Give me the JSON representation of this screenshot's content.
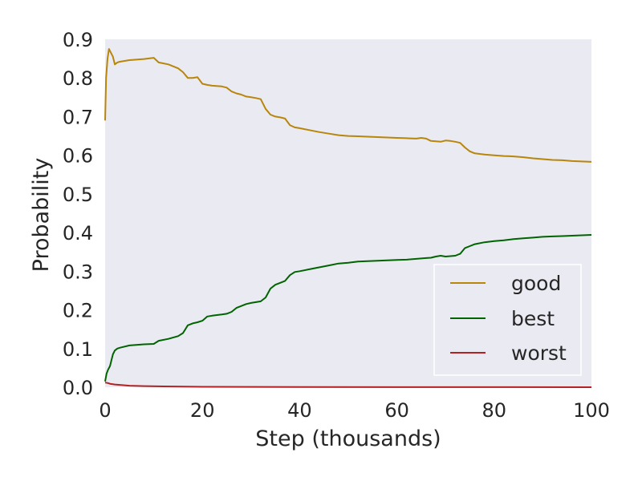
{
  "chart_data": {
    "type": "line",
    "title": "",
    "xlabel": "Step (thousands)",
    "ylabel": "Probability",
    "xlim": [
      0,
      100
    ],
    "ylim": [
      0,
      0.9
    ],
    "xticks": [
      0,
      20,
      40,
      60,
      80,
      100
    ],
    "yticks": [
      0.0,
      0.1,
      0.2,
      0.3,
      0.4,
      0.5,
      0.6,
      0.7,
      0.8,
      0.9
    ],
    "xtick_labels": [
      "0",
      "20",
      "40",
      "60",
      "80",
      "100"
    ],
    "ytick_labels": [
      "0.0",
      "0.1",
      "0.2",
      "0.3",
      "0.4",
      "0.5",
      "0.6",
      "0.7",
      "0.8",
      "0.9"
    ],
    "grid": false,
    "background_color": "#eaeaf2",
    "legend_position": "lower-right",
    "series": [
      {
        "name": "good",
        "color": "#b8860b",
        "x": [
          0,
          0.2,
          0.5,
          0.8,
          1.2,
          1.6,
          2.0,
          2.5,
          3,
          5,
          8,
          10,
          11,
          13,
          15,
          16,
          17,
          18,
          19,
          20,
          21,
          22,
          24,
          25,
          26,
          27,
          28,
          29,
          30,
          31,
          32,
          33,
          34,
          35,
          36,
          37,
          38,
          39,
          40,
          42,
          44,
          46,
          48,
          50,
          52,
          54,
          56,
          58,
          60,
          62,
          64,
          65,
          66,
          67,
          68,
          69,
          70,
          71,
          72,
          73,
          74,
          75,
          76,
          78,
          80,
          82,
          84,
          86,
          88,
          90,
          92,
          94,
          96,
          98,
          100
        ],
        "y": [
          0.69,
          0.8,
          0.85,
          0.875,
          0.865,
          0.855,
          0.835,
          0.84,
          0.842,
          0.846,
          0.849,
          0.852,
          0.84,
          0.835,
          0.825,
          0.815,
          0.8,
          0.8,
          0.802,
          0.785,
          0.782,
          0.78,
          0.778,
          0.775,
          0.765,
          0.76,
          0.757,
          0.752,
          0.75,
          0.748,
          0.745,
          0.72,
          0.705,
          0.7,
          0.698,
          0.695,
          0.678,
          0.672,
          0.67,
          0.665,
          0.66,
          0.656,
          0.652,
          0.65,
          0.649,
          0.648,
          0.647,
          0.646,
          0.645,
          0.644,
          0.643,
          0.645,
          0.643,
          0.637,
          0.636,
          0.635,
          0.638,
          0.637,
          0.635,
          0.632,
          0.62,
          0.61,
          0.605,
          0.602,
          0.6,
          0.598,
          0.597,
          0.595,
          0.592,
          0.59,
          0.588,
          0.587,
          0.585,
          0.584,
          0.583
        ]
      },
      {
        "name": "best",
        "color": "#006400",
        "x": [
          0,
          0.3,
          0.6,
          1.0,
          1.3,
          1.6,
          2.0,
          2.5,
          3,
          5,
          8,
          10,
          11,
          13,
          15,
          16,
          17,
          18,
          19,
          20,
          21,
          22,
          24,
          25,
          26,
          27,
          28,
          29,
          30,
          31,
          32,
          33,
          34,
          35,
          36,
          37,
          38,
          39,
          40,
          42,
          44,
          46,
          48,
          50,
          52,
          54,
          56,
          58,
          60,
          62,
          64,
          65,
          66,
          67,
          68,
          69,
          70,
          71,
          72,
          73,
          74,
          75,
          76,
          78,
          80,
          82,
          84,
          86,
          88,
          90,
          92,
          94,
          96,
          98,
          100
        ],
        "y": [
          0.015,
          0.035,
          0.045,
          0.055,
          0.07,
          0.085,
          0.095,
          0.1,
          0.102,
          0.108,
          0.111,
          0.112,
          0.12,
          0.125,
          0.132,
          0.14,
          0.16,
          0.165,
          0.168,
          0.172,
          0.183,
          0.185,
          0.188,
          0.19,
          0.195,
          0.205,
          0.21,
          0.215,
          0.218,
          0.22,
          0.222,
          0.232,
          0.255,
          0.265,
          0.27,
          0.275,
          0.29,
          0.298,
          0.3,
          0.305,
          0.31,
          0.315,
          0.32,
          0.322,
          0.325,
          0.326,
          0.327,
          0.328,
          0.329,
          0.33,
          0.332,
          0.333,
          0.334,
          0.335,
          0.338,
          0.34,
          0.338,
          0.339,
          0.34,
          0.345,
          0.36,
          0.365,
          0.37,
          0.375,
          0.378,
          0.38,
          0.383,
          0.385,
          0.387,
          0.389,
          0.39,
          0.391,
          0.392,
          0.393,
          0.394
        ]
      },
      {
        "name": "worst",
        "color": "#b22222",
        "x": [
          0,
          0.5,
          1,
          2,
          3,
          5,
          8,
          12,
          20,
          40,
          60,
          80,
          100
        ],
        "y": [
          0.012,
          0.011,
          0.009,
          0.007,
          0.006,
          0.004,
          0.003,
          0.002,
          0.001,
          0.0005,
          0.0003,
          0.0002,
          0.0001
        ]
      }
    ]
  }
}
